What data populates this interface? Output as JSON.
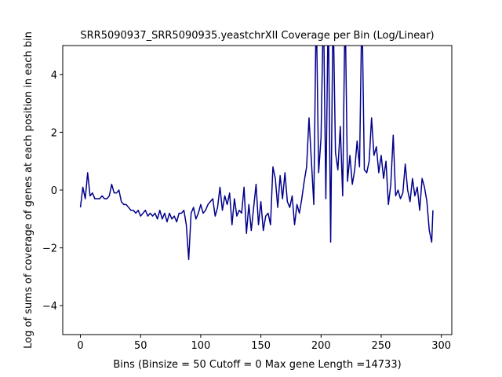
{
  "chart_data": {
    "type": "line",
    "title": "SRR5090937_SRR5090935.yeastchrXII Coverage per Bin (Log/Linear)",
    "x_label": "Bins  (Binsize = 50 Cutoff = 0 Max gene Length =14733)",
    "y_label": "Log of sums of coverage of genes at each position in each bin",
    "xlim": [
      -14.7,
      308.7
    ],
    "ylim": [
      -5,
      5
    ],
    "xticks": [
      0,
      50,
      100,
      150,
      200,
      250,
      300
    ],
    "yticks": [
      {
        "value": -4,
        "label": "−4"
      },
      {
        "value": -2,
        "label": "−2"
      },
      0,
      2,
      4
    ],
    "series": [
      {
        "color": "#00008b",
        "x": [
          0,
          2,
          4,
          6,
          8,
          10,
          12,
          14,
          16,
          18,
          20,
          22,
          24,
          26,
          28,
          30,
          32,
          34,
          36,
          38,
          40,
          42,
          44,
          46,
          48,
          50,
          52,
          54,
          56,
          58,
          60,
          62,
          64,
          66,
          68,
          70,
          72,
          74,
          76,
          78,
          80,
          82,
          84,
          86,
          88,
          90,
          92,
          94,
          96,
          98,
          100,
          102,
          104,
          106,
          108,
          110,
          112,
          114,
          116,
          118,
          120,
          122,
          124,
          126,
          128,
          130,
          132,
          134,
          136,
          138,
          140,
          142,
          144,
          146,
          148,
          150,
          152,
          154,
          156,
          158,
          160,
          162,
          164,
          166,
          168,
          170,
          172,
          174,
          176,
          178,
          180,
          182,
          184,
          186,
          188,
          190,
          192,
          194,
          196,
          198,
          200,
          202,
          204,
          206,
          208,
          210,
          212,
          214,
          216,
          218,
          220,
          222,
          224,
          226,
          228,
          230,
          232,
          234,
          236,
          238,
          240,
          242,
          244,
          246,
          248,
          250,
          252,
          254,
          256,
          258,
          260,
          262,
          264,
          266,
          268,
          270,
          272,
          274,
          276,
          278,
          280,
          282,
          284,
          286,
          288,
          290,
          292,
          293
        ],
        "values": [
          -0.6,
          0.1,
          -0.3,
          0.6,
          -0.2,
          -0.1,
          -0.3,
          -0.3,
          -0.3,
          -0.2,
          -0.3,
          -0.3,
          -0.2,
          0.2,
          -0.1,
          -0.1,
          0.0,
          -0.4,
          -0.5,
          -0.5,
          -0.6,
          -0.7,
          -0.7,
          -0.8,
          -0.7,
          -0.9,
          -0.8,
          -0.7,
          -0.9,
          -0.8,
          -0.9,
          -0.8,
          -1.0,
          -0.7,
          -1.0,
          -0.8,
          -1.1,
          -0.8,
          -1.0,
          -0.9,
          -1.1,
          -0.8,
          -0.8,
          -0.7,
          -1.2,
          -2.4,
          -0.8,
          -0.6,
          -1.0,
          -0.8,
          -0.5,
          -0.8,
          -0.7,
          -0.5,
          -0.4,
          -0.3,
          -0.9,
          -0.6,
          0.1,
          -0.7,
          -0.2,
          -0.5,
          -0.1,
          -1.2,
          -0.3,
          -0.9,
          -0.7,
          -0.8,
          0.1,
          -1.5,
          -0.5,
          -1.4,
          -0.6,
          0.2,
          -1.2,
          -0.4,
          -1.4,
          -0.9,
          -0.8,
          -1.2,
          0.8,
          0.4,
          -0.6,
          0.5,
          -0.3,
          0.6,
          -0.4,
          -0.6,
          -0.2,
          -1.2,
          -0.5,
          -0.8,
          -0.3,
          0.3,
          0.8,
          2.5,
          1.0,
          -0.5,
          6.5,
          0.6,
          1.8,
          6.5,
          -0.3,
          6.5,
          -1.8,
          6.5,
          1.3,
          0.7,
          2.2,
          -0.2,
          6.5,
          0.3,
          1.2,
          0.2,
          0.7,
          1.7,
          0.8,
          6.5,
          0.7,
          0.6,
          1.0,
          2.5,
          1.2,
          1.5,
          0.6,
          1.2,
          0.4,
          1.0,
          -0.5,
          0.2,
          1.9,
          -0.2,
          0.0,
          -0.3,
          -0.1,
          0.9,
          0.0,
          -0.4,
          0.4,
          -0.2,
          0.1,
          -0.7,
          0.4,
          0.1,
          -0.4,
          -1.4,
          -1.8,
          -0.7
        ]
      }
    ]
  }
}
